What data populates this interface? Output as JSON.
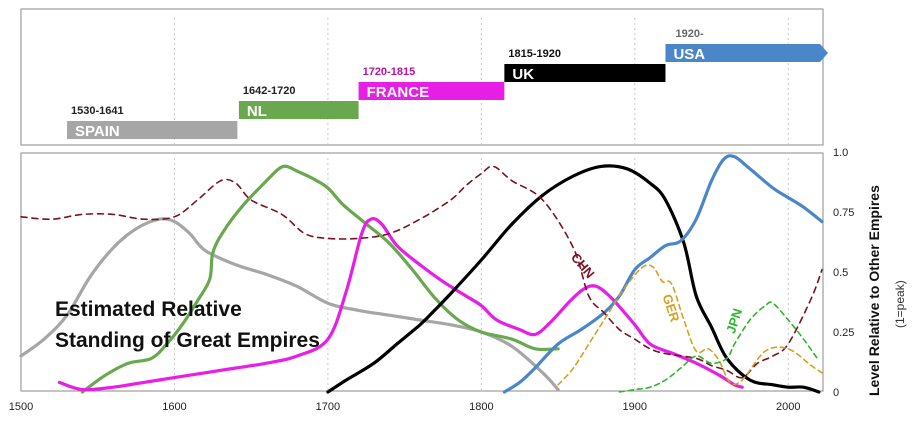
{
  "chart_data": [
    {
      "type": "timeline",
      "bars": [
        {
          "name": "SPAIN",
          "period": "1530-1641",
          "start": 1530,
          "end": 1641,
          "color": "#a6a6a6",
          "period_color": "#222222"
        },
        {
          "name": "NL",
          "period": "1642-1720",
          "start": 1642,
          "end": 1720,
          "color": "#6aa84f",
          "period_color": "#222222"
        },
        {
          "name": "FRANCE",
          "period": "1720-1815",
          "start": 1720,
          "end": 1815,
          "color": "#e61ee6",
          "period_color": "#b3159e"
        },
        {
          "name": "UK",
          "period": "1815-1920",
          "start": 1815,
          "end": 1920,
          "color": "#000000",
          "period_color": "#111111"
        },
        {
          "name": "USA",
          "period": "1920-",
          "start": 1920,
          "end": 2022,
          "color": "#4a86c8",
          "period_color": "#666666",
          "arrow": true
        }
      ]
    },
    {
      "type": "line",
      "title_lines": [
        "Estimated Relative",
        "Standing of Great Empires"
      ],
      "ylabel": "Level Relative to Other Empires",
      "ylabel_sub": "(1=peak)",
      "xlim": [
        1500,
        2022
      ],
      "ylim": [
        0,
        1
      ],
      "x_ticks": [
        "1500",
        "1600",
        "1700",
        "1800",
        "1900",
        "2000"
      ],
      "y_ticks": [
        "0",
        "0.25",
        "0.5",
        "0.75",
        "1.0"
      ],
      "gridlines_x": [
        1600,
        1700,
        1800,
        1900,
        2000
      ],
      "series": [
        {
          "name": "",
          "key": "spain",
          "color": "#a6a6a6",
          "dash": "",
          "points": [
            [
              1500,
              0.15
            ],
            [
              1515,
              0.22
            ],
            [
              1530,
              0.32
            ],
            [
              1545,
              0.48
            ],
            [
              1560,
              0.6
            ],
            [
              1575,
              0.68
            ],
            [
              1590,
              0.72
            ],
            [
              1600,
              0.71
            ],
            [
              1610,
              0.66
            ],
            [
              1620,
              0.59
            ],
            [
              1640,
              0.53
            ],
            [
              1660,
              0.49
            ],
            [
              1680,
              0.44
            ],
            [
              1700,
              0.37
            ],
            [
              1720,
              0.34
            ],
            [
              1740,
              0.32
            ],
            [
              1760,
              0.3
            ],
            [
              1780,
              0.28
            ],
            [
              1800,
              0.25
            ],
            [
              1820,
              0.19
            ],
            [
              1840,
              0.08
            ],
            [
              1850,
              0.01
            ]
          ]
        },
        {
          "name": "",
          "key": "nl",
          "color": "#6aa84f",
          "dash": "",
          "points": [
            [
              1540,
              0
            ],
            [
              1555,
              0.07
            ],
            [
              1570,
              0.12
            ],
            [
              1585,
              0.14
            ],
            [
              1595,
              0.2
            ],
            [
              1605,
              0.28
            ],
            [
              1615,
              0.38
            ],
            [
              1623,
              0.47
            ],
            [
              1625,
              0.58
            ],
            [
              1632,
              0.67
            ],
            [
              1645,
              0.78
            ],
            [
              1660,
              0.88
            ],
            [
              1668,
              0.93
            ],
            [
              1673,
              0.94
            ],
            [
              1680,
              0.92
            ],
            [
              1690,
              0.89
            ],
            [
              1700,
              0.85
            ],
            [
              1710,
              0.78
            ],
            [
              1725,
              0.7
            ],
            [
              1740,
              0.62
            ],
            [
              1755,
              0.51
            ],
            [
              1770,
              0.39
            ],
            [
              1785,
              0.3
            ],
            [
              1800,
              0.25
            ],
            [
              1820,
              0.22
            ],
            [
              1835,
              0.18
            ],
            [
              1850,
              0.18
            ]
          ]
        },
        {
          "name": "",
          "key": "france",
          "color": "#e61ee6",
          "dash": "",
          "points": [
            [
              1525,
              0.04
            ],
            [
              1540,
              0.01
            ],
            [
              1560,
              0.02
            ],
            [
              1580,
              0.04
            ],
            [
              1600,
              0.06
            ],
            [
              1620,
              0.08
            ],
            [
              1640,
              0.1
            ],
            [
              1660,
              0.12
            ],
            [
              1680,
              0.15
            ],
            [
              1700,
              0.22
            ],
            [
              1712,
              0.42
            ],
            [
              1722,
              0.66
            ],
            [
              1728,
              0.72
            ],
            [
              1735,
              0.7
            ],
            [
              1745,
              0.61
            ],
            [
              1760,
              0.53
            ],
            [
              1775,
              0.46
            ],
            [
              1790,
              0.4
            ],
            [
              1800,
              0.36
            ],
            [
              1810,
              0.3
            ],
            [
              1825,
              0.26
            ],
            [
              1835,
              0.24
            ],
            [
              1845,
              0.29
            ],
            [
              1858,
              0.38
            ],
            [
              1867,
              0.43
            ],
            [
              1875,
              0.44
            ],
            [
              1885,
              0.39
            ],
            [
              1900,
              0.28
            ],
            [
              1910,
              0.2
            ],
            [
              1925,
              0.16
            ],
            [
              1940,
              0.12
            ],
            [
              1955,
              0.07
            ],
            [
              1965,
              0.03
            ],
            [
              1970,
              0.02
            ]
          ]
        },
        {
          "name": "",
          "key": "uk",
          "color": "#000000",
          "dash": "",
          "points": [
            [
              1700,
              0
            ],
            [
              1712,
              0.05
            ],
            [
              1730,
              0.12
            ],
            [
              1745,
              0.2
            ],
            [
              1760,
              0.28
            ],
            [
              1768,
              0.33
            ],
            [
              1780,
              0.41
            ],
            [
              1800,
              0.55
            ],
            [
              1820,
              0.7
            ],
            [
              1840,
              0.82
            ],
            [
              1860,
              0.9
            ],
            [
              1878,
              0.94
            ],
            [
              1895,
              0.93
            ],
            [
              1910,
              0.87
            ],
            [
              1920,
              0.8
            ],
            [
              1932,
              0.62
            ],
            [
              1940,
              0.4
            ],
            [
              1950,
              0.27
            ],
            [
              1960,
              0.14
            ],
            [
              1975,
              0.05
            ],
            [
              1990,
              0.03
            ],
            [
              2000,
              0.02
            ],
            [
              2010,
              0.02
            ],
            [
              2020,
              0
            ]
          ]
        },
        {
          "name": "",
          "key": "usa",
          "color": "#4a86c8",
          "dash": "",
          "points": [
            [
              1815,
              0
            ],
            [
              1825,
              0.04
            ],
            [
              1835,
              0.1
            ],
            [
              1850,
              0.2
            ],
            [
              1865,
              0.26
            ],
            [
              1880,
              0.33
            ],
            [
              1890,
              0.4
            ],
            [
              1900,
              0.51
            ],
            [
              1910,
              0.56
            ],
            [
              1920,
              0.61
            ],
            [
              1930,
              0.63
            ],
            [
              1940,
              0.72
            ],
            [
              1950,
              0.88
            ],
            [
              1958,
              0.97
            ],
            [
              1965,
              0.98
            ],
            [
              1975,
              0.93
            ],
            [
              1990,
              0.85
            ],
            [
              2000,
              0.81
            ],
            [
              2010,
              0.77
            ],
            [
              2022,
              0.71
            ]
          ]
        },
        {
          "name": "CHN",
          "key": "chn",
          "color": "#7a1020",
          "dash": "6,5",
          "points": [
            [
              1500,
              0.73
            ],
            [
              1520,
              0.72
            ],
            [
              1540,
              0.74
            ],
            [
              1560,
              0.74
            ],
            [
              1580,
              0.72
            ],
            [
              1600,
              0.73
            ],
            [
              1615,
              0.8
            ],
            [
              1630,
              0.88
            ],
            [
              1640,
              0.87
            ],
            [
              1650,
              0.8
            ],
            [
              1670,
              0.74
            ],
            [
              1685,
              0.66
            ],
            [
              1700,
              0.64
            ],
            [
              1720,
              0.64
            ],
            [
              1740,
              0.66
            ],
            [
              1760,
              0.72
            ],
            [
              1780,
              0.8
            ],
            [
              1790,
              0.86
            ],
            [
              1800,
              0.91
            ],
            [
              1808,
              0.94
            ],
            [
              1820,
              0.88
            ],
            [
              1840,
              0.8
            ],
            [
              1860,
              0.6
            ],
            [
              1870,
              0.4
            ],
            [
              1880,
              0.33
            ],
            [
              1890,
              0.26
            ],
            [
              1900,
              0.22
            ],
            [
              1910,
              0.18
            ],
            [
              1920,
              0.16
            ],
            [
              1940,
              0.14
            ],
            [
              1950,
              0.11
            ],
            [
              1960,
              0.09
            ],
            [
              1970,
              0.06
            ],
            [
              1980,
              0.12
            ],
            [
              1990,
              0.15
            ],
            [
              2000,
              0.2
            ],
            [
              2015,
              0.39
            ],
            [
              2022,
              0.51
            ]
          ]
        },
        {
          "name": "GER",
          "key": "ger",
          "color": "#d4a020",
          "dash": "5,4",
          "points": [
            [
              1850,
              0.03
            ],
            [
              1860,
              0.1
            ],
            [
              1872,
              0.22
            ],
            [
              1882,
              0.32
            ],
            [
              1893,
              0.43
            ],
            [
              1905,
              0.52
            ],
            [
              1912,
              0.52
            ],
            [
              1918,
              0.46
            ],
            [
              1924,
              0.45
            ],
            [
              1932,
              0.3
            ],
            [
              1940,
              0.17
            ],
            [
              1948,
              0.18
            ],
            [
              1955,
              0.13
            ],
            [
              1962,
              0.04
            ],
            [
              1970,
              0.05
            ],
            [
              1985,
              0.17
            ],
            [
              2000,
              0.18
            ],
            [
              2015,
              0.11
            ],
            [
              2022,
              0.08
            ]
          ]
        },
        {
          "name": "JPN",
          "key": "jpn",
          "color": "#2ab82a",
          "dash": "5,4",
          "points": [
            [
              1890,
              0
            ],
            [
              1900,
              0.01
            ],
            [
              1910,
              0.02
            ],
            [
              1920,
              0.05
            ],
            [
              1930,
              0.1
            ],
            [
              1940,
              0.15
            ],
            [
              1950,
              0.12
            ],
            [
              1960,
              0.14
            ],
            [
              1965,
              0.2
            ],
            [
              1975,
              0.3
            ],
            [
              1985,
              0.36
            ],
            [
              1990,
              0.37
            ],
            [
              2000,
              0.3
            ],
            [
              2010,
              0.22
            ],
            [
              2020,
              0.13
            ]
          ]
        }
      ],
      "series_labels": [
        {
          "key": "chn",
          "text": "CHN",
          "x": 1858,
          "y": 0.56,
          "rotate": 50
        },
        {
          "key": "ger",
          "text": "GER",
          "x": 1918,
          "y": 0.4,
          "rotate": 72
        },
        {
          "key": "jpn",
          "text": "JPN",
          "x": 1965,
          "y": 0.24,
          "rotate": -72
        }
      ]
    }
  ]
}
